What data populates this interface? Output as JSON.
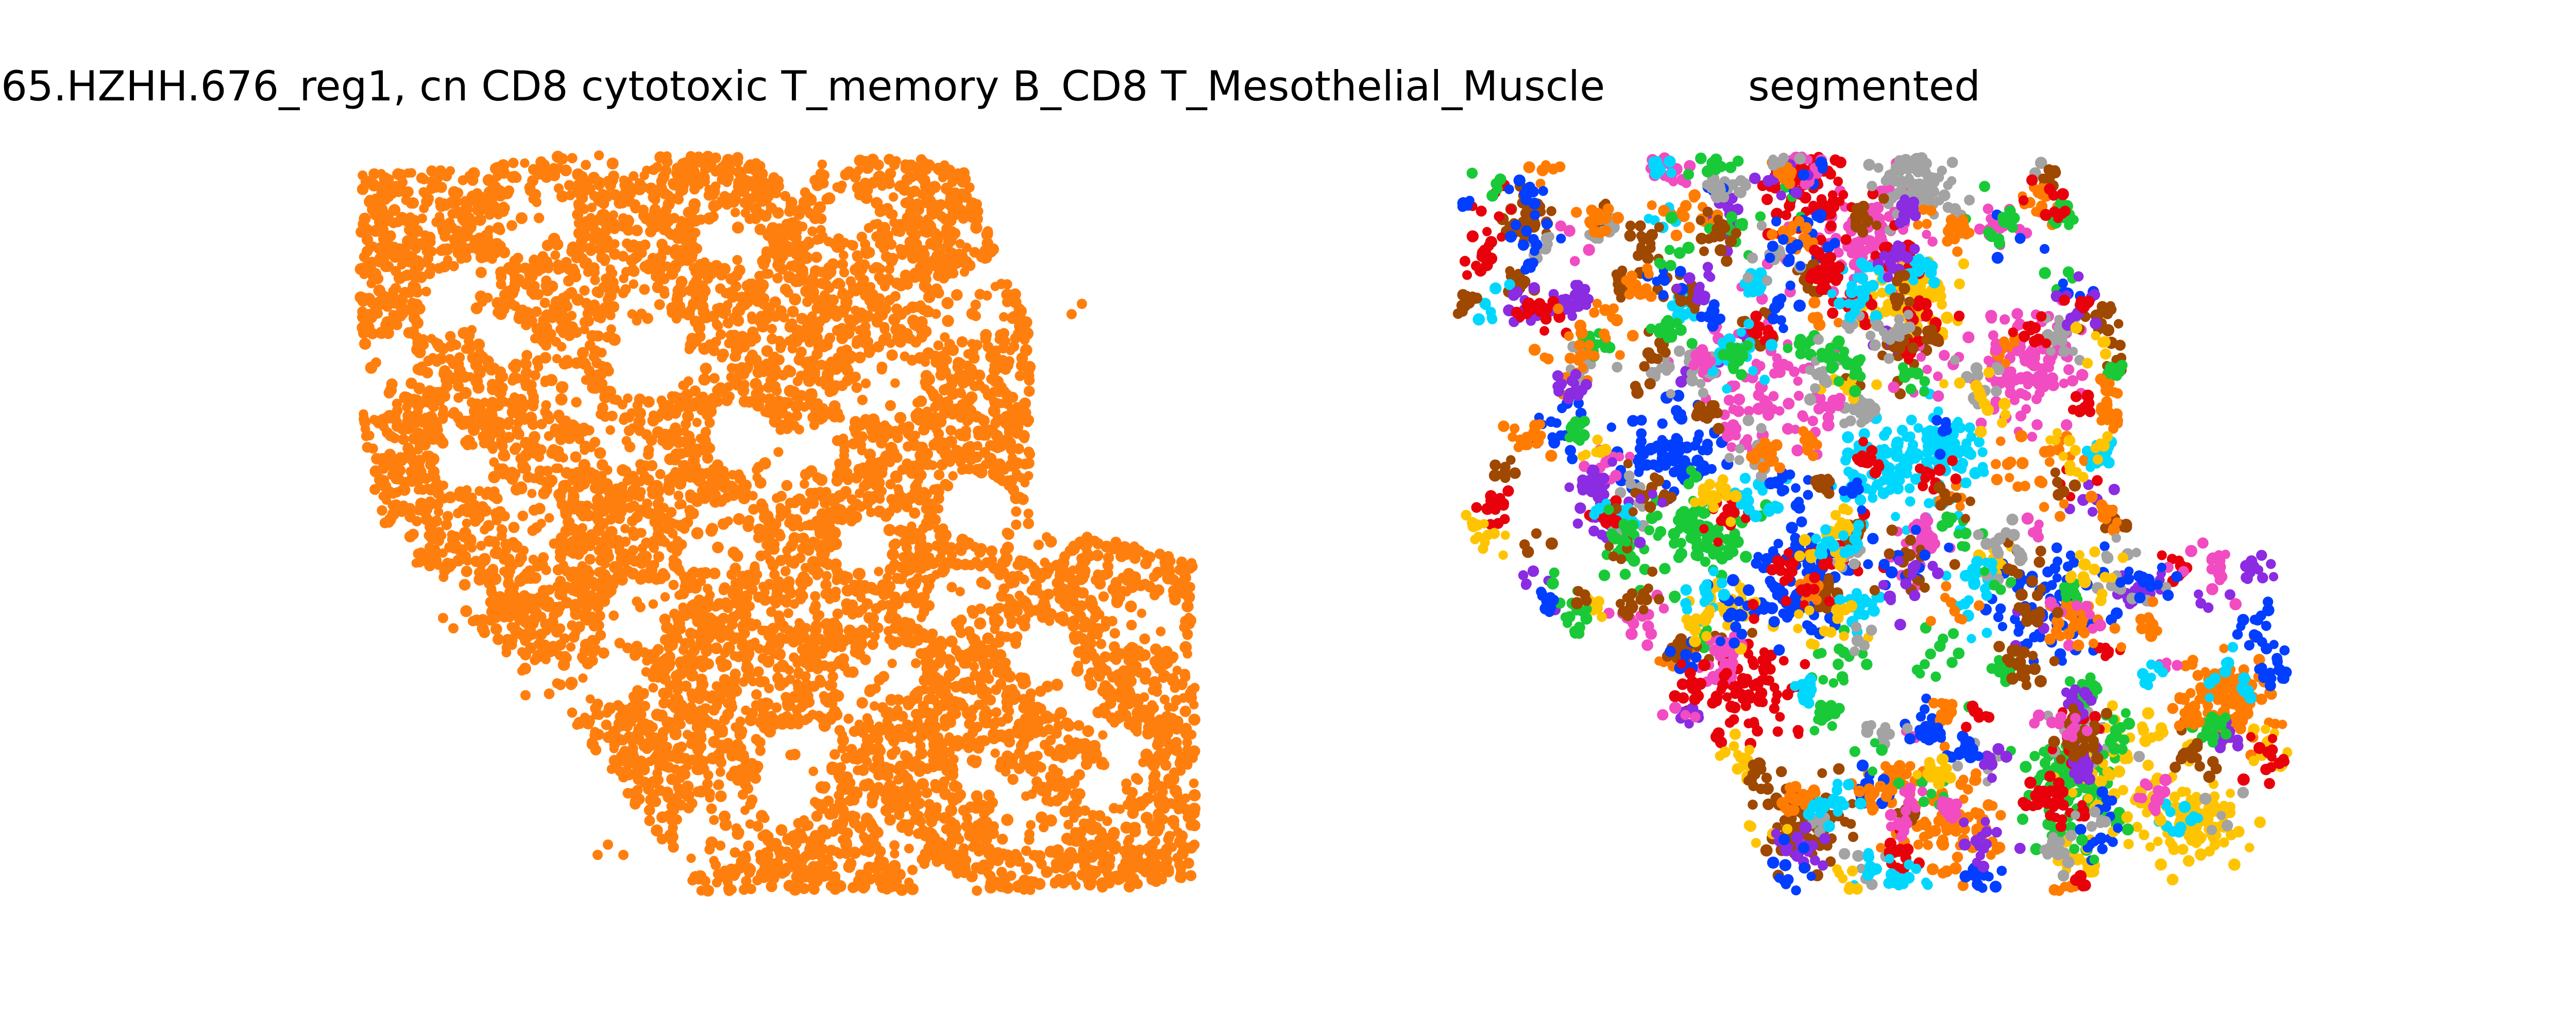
{
  "chart_data": [
    {
      "type": "scatter",
      "title": "65.HZHH.676_reg1, cn CD8 cytotoxic T_memory B_CD8 T_Mesothelial_Muscle",
      "series": [
        {
          "color": "#ff7f0e"
        }
      ],
      "grid": false,
      "axes_visible": false
    },
    {
      "type": "scatter",
      "title": "segmented",
      "series": [
        {
          "color": "#e8000b"
        },
        {
          "color": "#023eff"
        },
        {
          "color": "#1ac938"
        },
        {
          "color": "#ff7c00"
        },
        {
          "color": "#8b2be2"
        },
        {
          "color": "#9f4800"
        },
        {
          "color": "#f14cc1"
        },
        {
          "color": "#a3a3a3"
        },
        {
          "color": "#ffc400"
        },
        {
          "color": "#00d7ff"
        }
      ],
      "grid": false,
      "axes_visible": false
    }
  ]
}
